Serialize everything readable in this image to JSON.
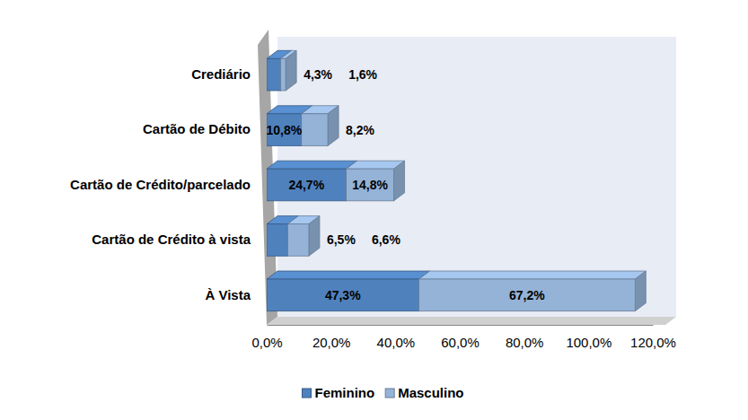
{
  "chart_data": {
    "type": "bar",
    "orientation": "horizontal",
    "stacked": true,
    "data_labels": true,
    "grid": false,
    "legend": "bottom",
    "categories": [
      "Crediário",
      "Cartão de Débito",
      "Cartão de Crédito/parcelado",
      "Cartão de Crédito à vista",
      "À Vista"
    ],
    "series": [
      {
        "name": "Feminino",
        "color": "#4f81bd",
        "values": [
          4.3,
          10.8,
          24.7,
          6.5,
          47.3
        ],
        "value_labels": [
          "4,3%",
          "10,8%",
          "24,7%",
          "6,5%",
          "47,3%"
        ]
      },
      {
        "name": "Masculino",
        "color": "#95b3d7",
        "values": [
          1.6,
          8.2,
          14.8,
          6.6,
          67.2
        ],
        "value_labels": [
          "1,6%",
          "8,2%",
          "14,8%",
          "6,6%",
          "67,2%"
        ]
      }
    ],
    "xlim": [
      0,
      120
    ],
    "xticks": [
      {
        "value": 0,
        "label": "0,0%"
      },
      {
        "value": 20,
        "label": "20,0%"
      },
      {
        "value": 40,
        "label": "40,0%"
      },
      {
        "value": 60,
        "label": "60,0%"
      },
      {
        "value": 80,
        "label": "80,0%"
      },
      {
        "value": 100,
        "label": "100,0%"
      },
      {
        "value": 120,
        "label": "120,0%"
      }
    ]
  }
}
